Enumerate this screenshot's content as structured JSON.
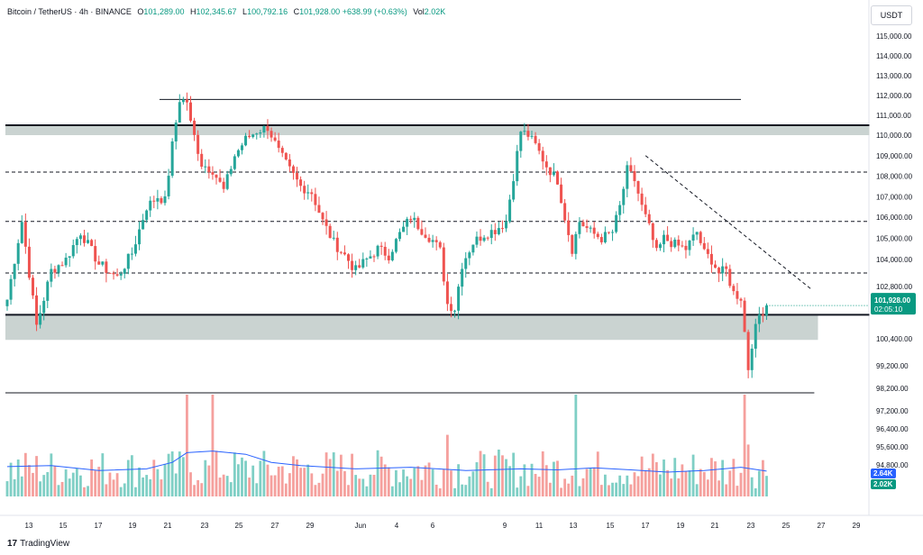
{
  "header": {
    "symbol": "Bitcoin / TetherUS · 4h · BINANCE",
    "open_key": "O",
    "open": "101,289.00",
    "high_key": "H",
    "high": "102,345.67",
    "low_key": "L",
    "low": "100,792.16",
    "close_key": "C",
    "close": "101,928.00",
    "change": "+638.99 (+0.63%)",
    "vol_key": "Vol",
    "vol": "2.02K"
  },
  "currency_button": "USDT",
  "footer": {
    "logo_mark": "17",
    "brand": "TradingView"
  },
  "colors": {
    "up": "#26a69a",
    "down": "#ef5350",
    "up_vol": "#7fcfc5",
    "down_vol": "#f5a09d",
    "zone": "#c7d1cf",
    "ma": "#2962ff",
    "label_bg": "#089981"
  },
  "chart_data": {
    "type": "candlestick",
    "timeframe": "4h",
    "x_ticks": [
      "13",
      "15",
      "17",
      "19",
      "21",
      "23",
      "25",
      "27",
      "29",
      "Jun",
      "4",
      "6",
      "9",
      "11",
      "13",
      "15",
      "17",
      "19",
      "21",
      "23",
      "25",
      "27",
      "29"
    ],
    "y_ticks": [
      {
        "label": "115,000.00",
        "value": 115000
      },
      {
        "label": "114,000.00",
        "value": 114000
      },
      {
        "label": "113,000.00",
        "value": 113000
      },
      {
        "label": "112,000.00",
        "value": 112000
      },
      {
        "label": "111,000.00",
        "value": 111000
      },
      {
        "label": "110,000.00",
        "value": 110000
      },
      {
        "label": "109,000.00",
        "value": 109000
      },
      {
        "label": "108,000.00",
        "value": 108000
      },
      {
        "label": "107,000.00",
        "value": 107000
      },
      {
        "label": "106,000.00",
        "value": 106000
      },
      {
        "label": "105,000.00",
        "value": 105000
      },
      {
        "label": "104,000.00",
        "value": 104000
      },
      {
        "label": "102,800.00",
        "value": 102800
      },
      {
        "label": "100,400.00",
        "value": 100400
      },
      {
        "label": "99,200.00",
        "value": 99200
      },
      {
        "label": "98,200.00",
        "value": 98200
      },
      {
        "label": "97,200.00",
        "value": 97200
      },
      {
        "label": "96,400.00",
        "value": 96400
      },
      {
        "label": "95,600.00",
        "value": 95600
      },
      {
        "label": "94,800.00",
        "value": 94800
      }
    ],
    "last_price": {
      "value": 101928,
      "label": "101,928.00",
      "countdown": "02:05:10"
    },
    "volume_labels": {
      "ma": "2.64K",
      "vol": "2.02K"
    },
    "price_path": [
      [
        0,
        102200
      ],
      [
        4,
        105800
      ],
      [
        8,
        101000
      ],
      [
        12,
        103500
      ],
      [
        16,
        104000
      ],
      [
        20,
        105300
      ],
      [
        25,
        103800
      ],
      [
        30,
        103200
      ],
      [
        34,
        104300
      ],
      [
        38,
        106500
      ],
      [
        41,
        107000
      ],
      [
        43,
        106800
      ],
      [
        45,
        109500
      ],
      [
        47,
        111800
      ],
      [
        49,
        111700
      ],
      [
        50,
        110600
      ],
      [
        53,
        108600
      ],
      [
        56,
        108300
      ],
      [
        59,
        107300
      ],
      [
        62,
        109000
      ],
      [
        65,
        109800
      ],
      [
        68,
        110200
      ],
      [
        71,
        110400
      ],
      [
        74,
        109200
      ],
      [
        77,
        108300
      ],
      [
        80,
        107500
      ],
      [
        83,
        107200
      ],
      [
        86,
        105800
      ],
      [
        89,
        104800
      ],
      [
        92,
        104200
      ],
      [
        95,
        103500
      ],
      [
        98,
        104000
      ],
      [
        101,
        104500
      ],
      [
        104,
        104200
      ],
      [
        107,
        105200
      ],
      [
        110,
        106000
      ],
      [
        113,
        105400
      ],
      [
        116,
        104900
      ],
      [
        118,
        104400
      ],
      [
        120,
        102000
      ],
      [
        122,
        101800
      ],
      [
        124,
        103800
      ],
      [
        127,
        104800
      ],
      [
        130,
        105200
      ],
      [
        133,
        105400
      ],
      [
        136,
        105800
      ],
      [
        138,
        108000
      ],
      [
        140,
        110200
      ],
      [
        142,
        110000
      ],
      [
        144,
        109500
      ],
      [
        147,
        108500
      ],
      [
        150,
        107800
      ],
      [
        152,
        106000
      ],
      [
        154,
        104500
      ],
      [
        156,
        105800
      ],
      [
        159,
        105300
      ],
      [
        162,
        105000
      ],
      [
        165,
        105300
      ],
      [
        167,
        106500
      ],
      [
        169,
        108300
      ],
      [
        171,
        107800
      ],
      [
        173,
        106500
      ],
      [
        175,
        105500
      ],
      [
        177,
        104300
      ],
      [
        179,
        105000
      ],
      [
        182,
        104700
      ],
      [
        185,
        104500
      ],
      [
        188,
        105300
      ],
      [
        190,
        104300
      ],
      [
        192,
        104000
      ],
      [
        194,
        103400
      ],
      [
        196,
        103500
      ],
      [
        198,
        102500
      ],
      [
        200,
        102300
      ],
      [
        202,
        99100
      ],
      [
        203,
        100200
      ],
      [
        205,
        101500
      ],
      [
        207,
        101928
      ]
    ],
    "volume_bars": [
      {
        "i": 49,
        "v": 3.4
      },
      {
        "i": 56,
        "v": 3.6
      },
      {
        "i": 120,
        "v": 1.9
      },
      {
        "i": 155,
        "v": 3.2
      },
      {
        "i": 201,
        "v": 3.8
      },
      {
        "i": 202,
        "v": 1.6
      }
    ],
    "volume_ma": [
      [
        0,
        0.92
      ],
      [
        12,
        0.95
      ],
      [
        25,
        0.8
      ],
      [
        38,
        0.85
      ],
      [
        45,
        1.05
      ],
      [
        49,
        1.35
      ],
      [
        56,
        1.4
      ],
      [
        65,
        1.3
      ],
      [
        72,
        1.05
      ],
      [
        80,
        0.95
      ],
      [
        95,
        0.85
      ],
      [
        110,
        0.9
      ],
      [
        125,
        0.8
      ],
      [
        140,
        0.85
      ],
      [
        150,
        0.82
      ],
      [
        160,
        0.88
      ],
      [
        170,
        0.82
      ],
      [
        180,
        0.75
      ],
      [
        190,
        0.8
      ],
      [
        200,
        0.9
      ],
      [
        207,
        0.78
      ]
    ],
    "levels": [
      {
        "price": 111800,
        "x0": 42,
        "x1": 200,
        "style": "solid",
        "weight": 1
      },
      {
        "price": 110500,
        "x0": 0,
        "x1": 235,
        "style": "solid",
        "weight": 2
      },
      {
        "price": 108200,
        "x0": 0,
        "x1": 235,
        "style": "dashed",
        "weight": 1
      },
      {
        "price": 105800,
        "x0": 0,
        "x1": 235,
        "style": "dashed",
        "weight": 1
      },
      {
        "price": 103400,
        "x0": 0,
        "x1": 235,
        "style": "dashed",
        "weight": 1
      },
      {
        "price": 101500,
        "x0": 0,
        "x1": 235,
        "style": "solid",
        "weight": 2
      },
      {
        "price": 98000,
        "x0": 0,
        "x1": 220,
        "style": "solid",
        "weight": 1
      }
    ],
    "zones": [
      {
        "from": 110000,
        "to": 110500,
        "x0": 0,
        "x1": 235
      },
      {
        "from": 100350,
        "to": 101500,
        "x0": 0,
        "x1": 221
      }
    ],
    "trendline": {
      "x0": 174,
      "p0": 109000,
      "x1": 219,
      "p1": 102700
    }
  }
}
